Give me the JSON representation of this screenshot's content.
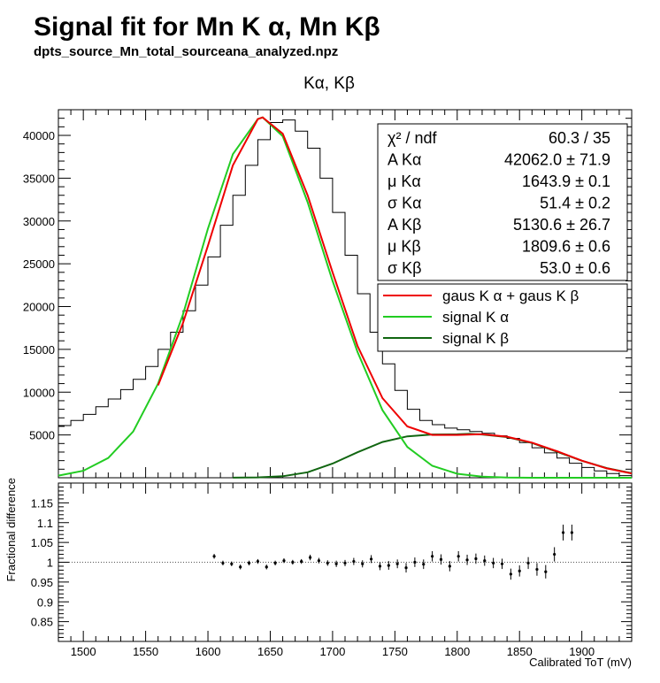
{
  "header": {
    "title": "Signal fit for Mn K α, Mn Kβ",
    "subtitle": "dpts_source_Mn_total_sourceana_analyzed.npz"
  },
  "stats": {
    "rows": [
      {
        "label": "χ² / ndf",
        "value": "60.3 / 35"
      },
      {
        "label": "A Kα",
        "value": "42062.0  ± 71.9"
      },
      {
        "label": "μ Kα",
        "value": "1643.9  ± 0.1"
      },
      {
        "label": "σ Kα",
        "value": "51.4  ± 0.2"
      },
      {
        "label": "A Kβ",
        "value": "5130.6  ± 26.7"
      },
      {
        "label": "μ Kβ",
        "value": "1809.6  ± 0.6"
      },
      {
        "label": "σ Kβ",
        "value": "53.0  ± 0.6"
      }
    ]
  },
  "legend": {
    "entries": [
      {
        "label": "gaus K α + gaus K β",
        "color": "#ee0000"
      },
      {
        "label": "signal K α",
        "color": "#22cc22"
      },
      {
        "label": "signal K β",
        "color": "#116611"
      }
    ]
  },
  "colors": {
    "histogram": "#000000",
    "total_fit": "#ee0000",
    "signal_ka": "#22cc22",
    "signal_kb": "#116611",
    "reference_line": "#555555"
  },
  "chart_data": [
    {
      "type": "line",
      "title": "Kα, Kβ",
      "xlabel": "",
      "ylabel": "",
      "xlim": [
        1480,
        1940
      ],
      "ylim": [
        0,
        43000
      ],
      "ytick_labels": [
        "5000",
        "10000",
        "15000",
        "20000",
        "25000",
        "30000",
        "35000",
        "40000"
      ],
      "grid": false,
      "legend_position": "top-right",
      "histogram": {
        "x": [
          1480,
          1490,
          1500,
          1510,
          1520,
          1530,
          1540,
          1550,
          1560,
          1570,
          1580,
          1590,
          1600,
          1610,
          1620,
          1630,
          1640,
          1650,
          1660,
          1670,
          1680,
          1690,
          1700,
          1710,
          1720,
          1730,
          1740,
          1750,
          1760,
          1770,
          1780,
          1790,
          1800,
          1810,
          1820,
          1830,
          1840,
          1850,
          1860,
          1870,
          1880,
          1890,
          1900,
          1910,
          1920,
          1930,
          1940
        ],
        "y": [
          6100,
          6700,
          7400,
          8300,
          9200,
          10300,
          11500,
          13000,
          15000,
          17000,
          19500,
          22500,
          25800,
          29500,
          33000,
          36500,
          39500,
          41500,
          41800,
          40500,
          38500,
          35000,
          31000,
          26000,
          21500,
          17000,
          13300,
          10200,
          8000,
          6700,
          6200,
          5800,
          5600,
          5400,
          5200,
          4900,
          4600,
          4100,
          3500,
          2900,
          2300,
          1700,
          1200,
          800,
          500,
          250,
          100
        ]
      },
      "series": [
        {
          "name": "gaus K α + gaus K β",
          "x": [
            1560,
            1580,
            1600,
            1620,
            1640,
            1643.9,
            1660,
            1680,
            1700,
            1720,
            1740,
            1760,
            1780,
            1800,
            1820,
            1840,
            1860,
            1880,
            1900,
            1920,
            1940
          ],
          "y": [
            10800,
            18100,
            27100,
            36500,
            41900,
            42100,
            40200,
            33000,
            24000,
            15400,
            9300,
            6000,
            5000,
            5000,
            5100,
            4800,
            4100,
            3100,
            2000,
            1100,
            500
          ]
        },
        {
          "name": "signal K α",
          "x": [
            1480,
            1500,
            1520,
            1540,
            1560,
            1580,
            1600,
            1620,
            1640,
            1643.9,
            1660,
            1680,
            1700,
            1720,
            1740,
            1760,
            1780,
            1800,
            1820,
            1840,
            1860,
            1880,
            1900,
            1920,
            1940
          ],
          "y": [
            250,
            820,
            2300,
            5400,
            11000,
            19100,
            29100,
            37800,
            41900,
            42100,
            39900,
            32200,
            23000,
            14700,
            7900,
            3600,
            1400,
            460,
            130,
            30,
            5,
            1,
            0,
            0,
            0
          ]
        },
        {
          "name": "signal K β",
          "x": [
            1620,
            1640,
            1660,
            1680,
            1700,
            1720,
            1740,
            1760,
            1780,
            1800,
            1809.6,
            1820,
            1840,
            1860,
            1880,
            1900,
            1920,
            1940
          ],
          "y": [
            9,
            45,
            180,
            640,
            1650,
            2980,
            4180,
            4840,
            5050,
            5080,
            5130,
            5050,
            4750,
            4060,
            3050,
            1980,
            1130,
            530
          ]
        }
      ]
    },
    {
      "type": "scatter",
      "title": "",
      "xlabel": "Calibrated ToT (mV)",
      "ylabel": "Fractional difference",
      "xlim": [
        1480,
        1940
      ],
      "ylim": [
        0.8,
        1.2
      ],
      "ytick_labels": [
        "0.85",
        "0.9",
        "0.95",
        "1",
        "1.05",
        "1.1",
        "1.15"
      ],
      "xtick_labels": [
        "1500",
        "1550",
        "1600",
        "1650",
        "1700",
        "1750",
        "1800",
        "1850",
        "1900"
      ],
      "reference_y": 1,
      "x": [
        1605,
        1612,
        1619,
        1626,
        1633,
        1640,
        1647,
        1654,
        1661,
        1668,
        1675,
        1682,
        1689,
        1696,
        1703,
        1710,
        1717,
        1724,
        1731,
        1738,
        1745,
        1752,
        1759,
        1766,
        1773,
        1780,
        1787,
        1794,
        1801,
        1808,
        1815,
        1822,
        1829,
        1836,
        1843,
        1850,
        1857,
        1864,
        1871,
        1878,
        1885,
        1892
      ],
      "y": [
        1.015,
        0.998,
        0.996,
        0.988,
        0.998,
        1.002,
        0.988,
        0.998,
        1.004,
        1.0,
        1.002,
        1.012,
        1.004,
        0.998,
        0.996,
        0.998,
        1.002,
        0.996,
        1.008,
        0.99,
        0.992,
        0.996,
        0.986,
        1.0,
        0.995,
        1.015,
        1.007,
        0.99,
        1.015,
        1.006,
        1.009,
        1.004,
        0.998,
        0.996,
        0.97,
        0.978,
        0.998,
        0.982,
        0.976,
        1.02,
        1.075,
        1.075
      ],
      "err": [
        0.006,
        0.006,
        0.006,
        0.006,
        0.006,
        0.006,
        0.006,
        0.006,
        0.006,
        0.006,
        0.006,
        0.007,
        0.007,
        0.007,
        0.008,
        0.008,
        0.009,
        0.009,
        0.01,
        0.01,
        0.011,
        0.011,
        0.012,
        0.012,
        0.012,
        0.013,
        0.013,
        0.013,
        0.013,
        0.013,
        0.013,
        0.013,
        0.013,
        0.013,
        0.014,
        0.014,
        0.015,
        0.016,
        0.017,
        0.018,
        0.02,
        0.02
      ]
    }
  ]
}
